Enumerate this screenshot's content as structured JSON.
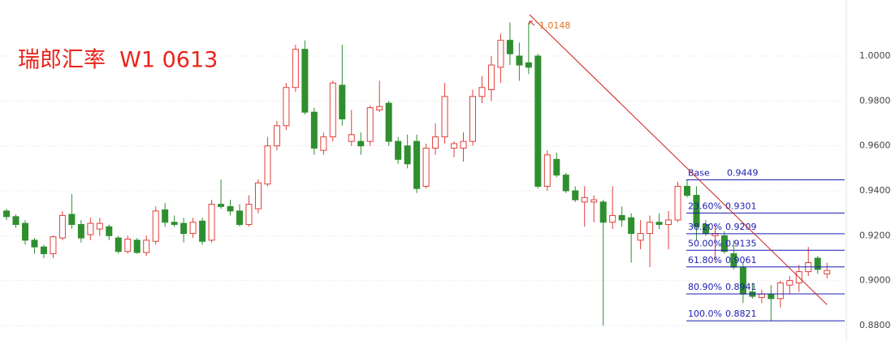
{
  "chart_data": {
    "type": "candlestick",
    "title": "瑞郎汇率  W1 0613",
    "xlim": [
      -0.7,
      89.9
    ],
    "ylim": [
      0.87312,
      1.02495
    ],
    "yticks": [
      {
        "value": 1.0,
        "label": "1.0000"
      },
      {
        "value": 0.98,
        "label": "0.9800"
      },
      {
        "value": 0.96,
        "label": "0.9600"
      },
      {
        "value": 0.94,
        "label": "0.9400"
      },
      {
        "value": 0.92,
        "label": "0.9200"
      },
      {
        "value": 0.9,
        "label": "0.9000"
      },
      {
        "value": 0.88,
        "label": "0.8800"
      }
    ],
    "grid": true,
    "up_color": "#e0403a",
    "down_color": "#2f8f2f",
    "open": [
      0.931,
      0.9285,
      0.9255,
      0.918,
      0.915,
      0.912,
      0.919,
      0.9295,
      0.925,
      0.9205,
      0.923,
      0.924,
      0.919,
      0.913,
      0.918,
      0.9125,
      0.9175,
      0.9315,
      0.926,
      0.9255,
      0.921,
      0.9265,
      0.918,
      0.934,
      0.933,
      0.931,
      0.925,
      0.932,
      0.943,
      0.96,
      0.969,
      0.986,
      1.003,
      0.975,
      0.958,
      0.964,
      0.987,
      0.962,
      0.962,
      0.962,
      0.976,
      0.979,
      0.962,
      0.96,
      0.962,
      0.942,
      0.959,
      0.964,
      0.959,
      0.959,
      0.962,
      0.982,
      0.985,
      0.995,
      1.007,
      1.0,
      0.997,
      1.0,
      0.942,
      0.954,
      0.947,
      0.94,
      0.935,
      0.935,
      0.935,
      0.926,
      0.929,
      0.928,
      0.918,
      0.921,
      0.926,
      0.925,
      0.927,
      0.942,
      0.938,
      0.925,
      0.92,
      0.92,
      0.912,
      0.906,
      0.895,
      0.8925,
      0.894,
      0.892,
      0.898,
      0.899,
      0.904,
      0.91,
      0.903
    ],
    "high": [
      0.932,
      0.9295,
      0.927,
      0.919,
      0.916,
      0.92,
      0.931,
      0.9385,
      0.927,
      0.928,
      0.928,
      0.925,
      0.92,
      0.92,
      0.919,
      0.92,
      0.933,
      0.9345,
      0.929,
      0.928,
      0.928,
      0.928,
      0.936,
      0.945,
      0.936,
      0.934,
      0.938,
      0.945,
      0.964,
      0.971,
      0.988,
      1.005,
      1.007,
      0.977,
      0.966,
      0.989,
      1.005,
      0.976,
      0.966,
      0.978,
      0.989,
      0.98,
      0.964,
      0.965,
      0.965,
      0.961,
      0.97,
      0.988,
      0.962,
      0.966,
      0.985,
      0.991,
      1.0,
      1.01,
      1.015,
      1.006,
      1.0148,
      1.001,
      0.958,
      0.957,
      0.948,
      0.942,
      0.942,
      0.938,
      0.936,
      0.942,
      0.933,
      0.93,
      0.927,
      0.929,
      0.93,
      0.931,
      0.944,
      0.9449,
      0.942,
      0.927,
      0.925,
      0.922,
      0.918,
      0.908,
      0.899,
      0.896,
      0.898,
      0.9,
      0.902,
      0.907,
      0.915,
      0.911,
      0.908
    ],
    "low": [
      0.927,
      0.9235,
      0.916,
      0.912,
      0.91,
      0.91,
      0.918,
      0.923,
      0.917,
      0.918,
      0.92,
      0.918,
      0.912,
      0.912,
      0.912,
      0.911,
      0.916,
      0.924,
      0.924,
      0.917,
      0.919,
      0.916,
      0.917,
      0.932,
      0.929,
      0.924,
      0.924,
      0.93,
      0.942,
      0.958,
      0.967,
      0.984,
      0.974,
      0.956,
      0.956,
      0.962,
      0.969,
      0.96,
      0.956,
      0.96,
      0.975,
      0.96,
      0.952,
      0.95,
      0.939,
      0.941,
      0.956,
      0.961,
      0.955,
      0.953,
      0.96,
      0.979,
      0.98,
      0.988,
      0.996,
      0.989,
      0.992,
      0.941,
      0.94,
      0.946,
      0.939,
      0.935,
      0.924,
      0.926,
      0.88,
      0.923,
      0.924,
      0.908,
      0.914,
      0.906,
      0.923,
      0.914,
      0.926,
      0.937,
      0.918,
      0.92,
      0.908,
      0.912,
      0.905,
      0.89,
      0.892,
      0.89,
      0.8821,
      0.888,
      0.894,
      0.895,
      0.902,
      0.903,
      0.901
    ],
    "close": [
      0.9285,
      0.925,
      0.918,
      0.915,
      0.912,
      0.9195,
      0.929,
      0.925,
      0.919,
      0.9255,
      0.9255,
      0.92,
      0.913,
      0.9185,
      0.9125,
      0.918,
      0.931,
      0.926,
      0.925,
      0.921,
      0.926,
      0.9175,
      0.934,
      0.933,
      0.931,
      0.925,
      0.934,
      0.9435,
      0.96,
      0.969,
      0.986,
      1.003,
      0.975,
      0.959,
      0.964,
      0.988,
      0.972,
      0.965,
      0.96,
      0.977,
      0.9775,
      0.962,
      0.954,
      0.952,
      0.941,
      0.959,
      0.964,
      0.982,
      0.961,
      0.962,
      0.982,
      0.986,
      0.996,
      1.007,
      1.001,
      0.996,
      0.995,
      0.942,
      0.956,
      0.947,
      0.94,
      0.936,
      0.937,
      0.936,
      0.926,
      0.929,
      0.927,
      0.921,
      0.921,
      0.926,
      0.925,
      0.927,
      0.942,
      0.938,
      0.924,
      0.921,
      0.921,
      0.913,
      0.906,
      0.894,
      0.893,
      0.894,
      0.892,
      0.899,
      0.9,
      0.904,
      0.908,
      0.905,
      0.9045
    ],
    "trendline": {
      "color": "#c8221c",
      "x": [
        56.1,
        88
      ],
      "values": [
        1.0184,
        0.8893
      ]
    },
    "annotation": {
      "text": "1.0148",
      "value": 1.0148,
      "x": 56
    },
    "fib_color": "#1c1cb0",
    "fib_levels": [
      {
        "label": "Base",
        "value": 0.9449
      },
      {
        "label": "23.60%",
        "value": 0.9301
      },
      {
        "label": "38.20%",
        "value": 0.9209
      },
      {
        "label": "50.00%",
        "value": 0.9135
      },
      {
        "label": "61.80%",
        "value": 0.9061
      },
      {
        "label": "80.90%",
        "value": 0.8941
      },
      {
        "label": "100.0%",
        "value": 0.8821
      }
    ]
  }
}
